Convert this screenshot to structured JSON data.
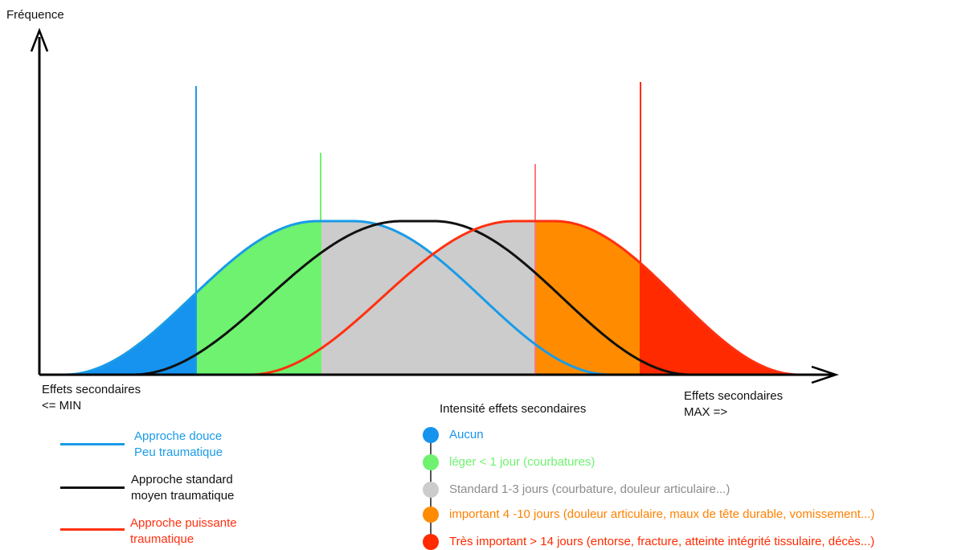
{
  "axes": {
    "y_label": "Fréquence",
    "x_left_label_line1": "Effets secondaires",
    "x_left_label_line2": "<= MIN",
    "x_right_label_line1": "Effets secondaires",
    "x_right_label_line2": "MAX =>"
  },
  "approaches": [
    {
      "line1": "Approche douce",
      "line2": "Peu traumatique",
      "color": "#1a9be8"
    },
    {
      "line1": "Approche standard",
      "line2": "moyen traumatique",
      "color": "#111111"
    },
    {
      "line1": "Approche puissante",
      "line2": "traumatique",
      "color": "#ff3010"
    }
  ],
  "intensity": {
    "title": "Intensité effets secondaires",
    "levels": [
      {
        "label": "Aucun",
        "color": "#1593ee"
      },
      {
        "label": "léger < 1 jour (courbatures)",
        "color": "#6ff26f"
      },
      {
        "label": "Standard 1-3 jours (courbature, douleur articulaire...)",
        "color": "#cccccc",
        "text_color": "#8c8c8c"
      },
      {
        "label": "important 4 -10 jours (douleur articulaire, maux de tête durable, vomissement...)",
        "color": "#ff8c00",
        "text_color": "#ff8000"
      },
      {
        "label": "Très important > 14 jours (entorse, fracture, atteinte intégrité tissulaire, décès...)",
        "color": "#ff2a00",
        "text_color": "#ff2a00"
      }
    ]
  }
}
